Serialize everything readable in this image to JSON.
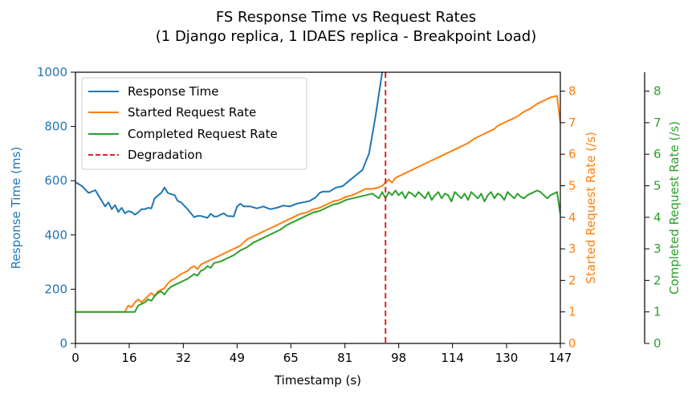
{
  "chart_data": {
    "type": "line",
    "title_line1": "FS Response Time vs Request Rates",
    "title_line2": "(1 Django replica, 1 IDAES replica - Breakpoint Load)",
    "xlabel": "Timestamp (s)",
    "ylabel_left": "Response Time (ms)",
    "ylabel_right1": "Started Request Rate (/s)",
    "ylabel_right2": "Completed Request Rate (/s)",
    "xlim": [
      0,
      147
    ],
    "ylim_left": [
      0,
      1000
    ],
    "ylim_right": [
      0,
      8.6
    ],
    "x_ticks": [
      0,
      16.3,
      32.7,
      49,
      65.3,
      81.7,
      98,
      114.3,
      130.7,
      147
    ],
    "x_tick_labels": [
      "0",
      "16",
      "32",
      "49",
      "65",
      "81",
      "98",
      "114",
      "130",
      "147"
    ],
    "y_left_ticks": [
      0,
      200,
      400,
      600,
      800,
      1000
    ],
    "y_left_tick_labels": [
      "0",
      "200",
      "400",
      "600",
      "800",
      "1000"
    ],
    "y_right_ticks": [
      0,
      1,
      2,
      3,
      4,
      5,
      6,
      7,
      8
    ],
    "y_right1_tick_labels": [
      "0",
      "1",
      "2",
      "3",
      "4",
      "5",
      "6",
      "7",
      "8"
    ],
    "y_right2_tick_labels": [
      "0",
      "1",
      "2",
      "3",
      "4",
      "5",
      "6",
      "7",
      "8"
    ],
    "degradation_x": 94,
    "legend": {
      "placement": "upper-left",
      "entries": [
        "Response Time",
        "Started Request Rate",
        "Completed Request Rate",
        "Degradation"
      ]
    },
    "colors": {
      "response": "#1f77b4",
      "started": "#ff7f0e",
      "completed": "#2ca02c",
      "degradation": "#d62728"
    },
    "series": [
      {
        "name": "Response Time",
        "axis": "left",
        "x": [
          0,
          2,
          4,
          6,
          7,
          9,
          10,
          11,
          12,
          13,
          14,
          15,
          16,
          17,
          18,
          19,
          20,
          21,
          22,
          23,
          24,
          25,
          26,
          27,
          28,
          29,
          30,
          31,
          32,
          34,
          36,
          37,
          38,
          40,
          41,
          42,
          43,
          44,
          45,
          46,
          48,
          49,
          50,
          51,
          53,
          55,
          57,
          59,
          61,
          63,
          65,
          67,
          69,
          71,
          73,
          74,
          75,
          77,
          79,
          81,
          83,
          85,
          87,
          89,
          91,
          93
        ],
        "y": [
          595,
          580,
          555,
          565,
          545,
          505,
          520,
          495,
          510,
          485,
          500,
          480,
          488,
          485,
          475,
          483,
          495,
          495,
          500,
          498,
          535,
          545,
          555,
          575,
          555,
          550,
          548,
          525,
          520,
          495,
          465,
          470,
          470,
          463,
          478,
          468,
          468,
          475,
          480,
          470,
          468,
          505,
          515,
          505,
          505,
          498,
          505,
          495,
          500,
          508,
          505,
          515,
          520,
          525,
          540,
          555,
          560,
          560,
          575,
          580,
          600,
          620,
          640,
          700,
          840,
          1000
        ]
      },
      {
        "name": "Started Request Rate",
        "axis": "right",
        "x": [
          0,
          8,
          15,
          16,
          17,
          18,
          19,
          20,
          21,
          22,
          23,
          24,
          25,
          26,
          27,
          28,
          29,
          30,
          32,
          34,
          35,
          36,
          37,
          38,
          40,
          42,
          44,
          46,
          48,
          50,
          52,
          54,
          56,
          58,
          60,
          62,
          64,
          66,
          68,
          70,
          72,
          74,
          76,
          78,
          80,
          82,
          84,
          86,
          88,
          90,
          92,
          93,
          94,
          95,
          96,
          97,
          98,
          100,
          102,
          104,
          106,
          108,
          110,
          112,
          113,
          115,
          117,
          119,
          121,
          123,
          125,
          127,
          128,
          130,
          132,
          134,
          136,
          138,
          140,
          142,
          144,
          146,
          147
        ],
        "y": [
          1.0,
          1.0,
          1.0,
          1.2,
          1.15,
          1.3,
          1.4,
          1.3,
          1.4,
          1.5,
          1.6,
          1.5,
          1.65,
          1.7,
          1.75,
          1.9,
          2.0,
          2.05,
          2.2,
          2.3,
          2.4,
          2.45,
          2.35,
          2.5,
          2.6,
          2.7,
          2.8,
          2.9,
          3.0,
          3.1,
          3.3,
          3.4,
          3.5,
          3.6,
          3.7,
          3.8,
          3.9,
          4.0,
          4.1,
          4.15,
          4.25,
          4.3,
          4.4,
          4.5,
          4.55,
          4.65,
          4.7,
          4.8,
          4.9,
          4.9,
          4.95,
          5.0,
          5.1,
          5.2,
          5.1,
          5.25,
          5.3,
          5.4,
          5.5,
          5.6,
          5.7,
          5.8,
          5.9,
          6.0,
          6.05,
          6.15,
          6.25,
          6.35,
          6.5,
          6.6,
          6.7,
          6.8,
          6.9,
          7.0,
          7.1,
          7.2,
          7.35,
          7.45,
          7.6,
          7.7,
          7.8,
          7.85,
          7.0
        ]
      },
      {
        "name": "Completed Request Rate",
        "axis": "right",
        "x": [
          0,
          8,
          15,
          18,
          19,
          20,
          21,
          22,
          23,
          24,
          25,
          26,
          27,
          28,
          29,
          30,
          31,
          32,
          34,
          36,
          37,
          38,
          39,
          40,
          41,
          42,
          44,
          46,
          48,
          50,
          52,
          54,
          56,
          58,
          60,
          62,
          64,
          66,
          68,
          70,
          72,
          74,
          76,
          78,
          80,
          82,
          84,
          86,
          88,
          90,
          92,
          93,
          94,
          95,
          96,
          97,
          98,
          99,
          100,
          101,
          102,
          103,
          104,
          105,
          106,
          107,
          108,
          109,
          110,
          111,
          112,
          113,
          114,
          115,
          116,
          117,
          118,
          119,
          120,
          121,
          122,
          123,
          124,
          125,
          126,
          127,
          128,
          129,
          130,
          131,
          132,
          133,
          134,
          135,
          136,
          137,
          138,
          139,
          140,
          141,
          142,
          143,
          144,
          145,
          146,
          147
        ],
        "y": [
          1.0,
          1.0,
          1.0,
          1.0,
          1.2,
          1.25,
          1.3,
          1.4,
          1.35,
          1.5,
          1.6,
          1.65,
          1.55,
          1.7,
          1.8,
          1.85,
          1.9,
          1.95,
          2.05,
          2.2,
          2.15,
          2.3,
          2.35,
          2.45,
          2.4,
          2.55,
          2.6,
          2.7,
          2.8,
          2.95,
          3.05,
          3.2,
          3.3,
          3.4,
          3.5,
          3.6,
          3.75,
          3.85,
          3.95,
          4.05,
          4.15,
          4.2,
          4.3,
          4.4,
          4.45,
          4.55,
          4.6,
          4.65,
          4.7,
          4.75,
          4.6,
          4.8,
          4.6,
          4.8,
          4.7,
          4.85,
          4.7,
          4.8,
          4.6,
          4.8,
          4.75,
          4.65,
          4.8,
          4.7,
          4.6,
          4.8,
          4.55,
          4.7,
          4.8,
          4.6,
          4.75,
          4.7,
          4.5,
          4.8,
          4.7,
          4.6,
          4.75,
          4.55,
          4.8,
          4.7,
          4.6,
          4.75,
          4.5,
          4.7,
          4.8,
          4.6,
          4.75,
          4.7,
          4.55,
          4.8,
          4.7,
          4.6,
          4.75,
          4.65,
          4.6,
          4.7,
          4.75,
          4.8,
          4.85,
          4.8,
          4.7,
          4.6,
          4.7,
          4.75,
          4.8,
          4.1
        ]
      }
    ]
  }
}
